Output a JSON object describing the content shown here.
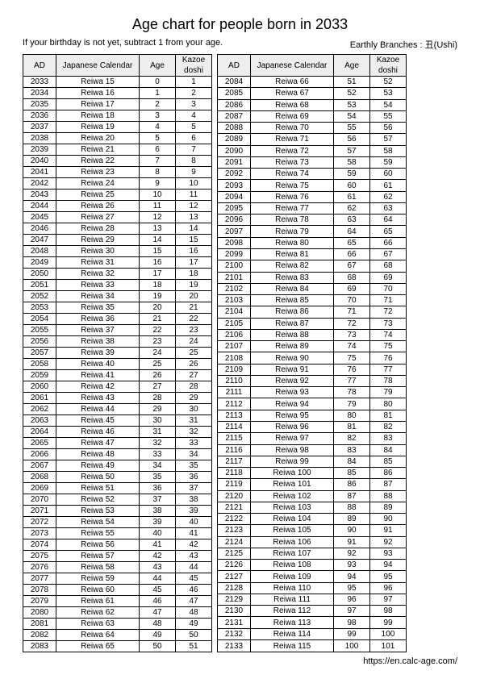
{
  "title": "Age chart for people born in 2033",
  "subhead_left": "If your birthday is not yet, subtract 1 from your age.",
  "subhead_right": "Earthly Branches : 丑(Ushi)",
  "footer": "https://en.calc-age.com/",
  "columns": [
    "AD",
    "Japanese Calendar",
    "Age",
    "Kazoe doshi"
  ],
  "col_widths_class": [
    "col-ad",
    "col-jc",
    "col-age",
    "col-kd"
  ],
  "era_prefix": "Reiwa ",
  "start_year": 2033,
  "era_start_number": 15,
  "left_count": 51,
  "right_count": 50,
  "header_bg": "#eeeeee",
  "border_color": "#000000"
}
